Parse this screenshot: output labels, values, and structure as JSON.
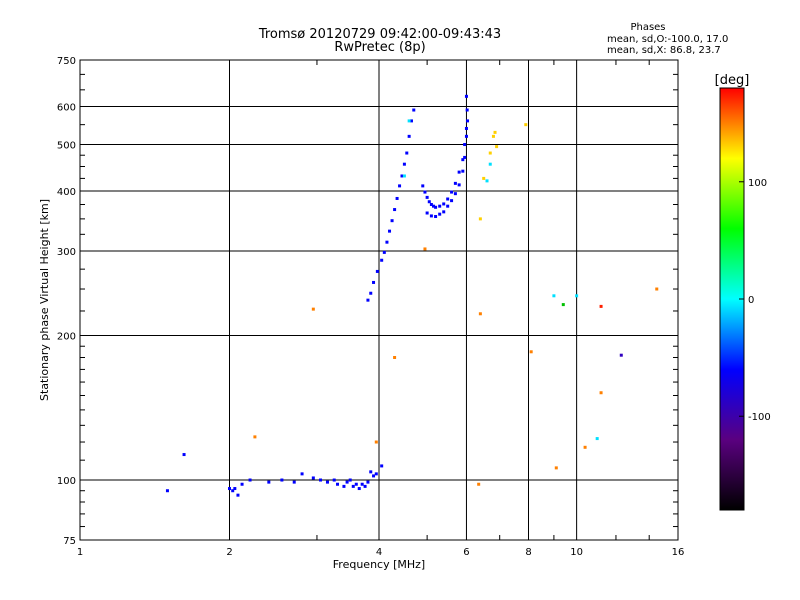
{
  "header": {
    "title_line1": "Tromsø 20120729 09:42:00-09:43:43",
    "title_line2": "RwPretec (8p)"
  },
  "phases_box": {
    "title": "Phases",
    "line1": "mean, sd,O:-100.0, 17.0",
    "line2": "mean, sd,X:  86.8, 23.7"
  },
  "colorbar": {
    "label": "[deg]",
    "ticks": [
      "100",
      "0",
      "-100"
    ],
    "range": [
      -180,
      180
    ],
    "colors": [
      "#000000",
      "#5a0080",
      "#0000ff",
      "#00ffff",
      "#00ff00",
      "#ffff00",
      "#ff0000"
    ]
  },
  "chart_data": {
    "type": "scatter",
    "title": "Tromsø 20120729 09:42:00-09:43:43",
    "subtitle": "RwPretec (8p)",
    "xlabel": "Frequency [MHz]",
    "ylabel": "Stationary phase Virtual Height [km]",
    "xscale": "log",
    "yscale": "log",
    "xlim": [
      1,
      16
    ],
    "ylim": [
      75,
      750
    ],
    "xticks": [
      "1",
      "2",
      "4",
      "6",
      "8",
      "10",
      "16"
    ],
    "yticks": [
      "75",
      "100",
      "200",
      "300",
      "400",
      "500",
      "600",
      "750"
    ],
    "grid": true,
    "series": [
      {
        "color": "#0000ff",
        "points": [
          [
            1.5,
            95
          ],
          [
            1.62,
            113
          ],
          [
            2.0,
            96
          ],
          [
            2.03,
            95
          ],
          [
            2.05,
            96
          ],
          [
            2.08,
            93
          ],
          [
            2.12,
            98
          ],
          [
            2.2,
            100
          ],
          [
            2.4,
            99
          ],
          [
            2.55,
            100
          ],
          [
            2.7,
            99
          ],
          [
            2.8,
            103
          ],
          [
            2.95,
            101
          ],
          [
            3.05,
            100
          ],
          [
            3.15,
            99
          ],
          [
            3.25,
            100
          ],
          [
            3.3,
            98
          ],
          [
            3.4,
            97
          ],
          [
            3.45,
            99
          ],
          [
            3.5,
            100
          ],
          [
            3.55,
            97
          ],
          [
            3.6,
            98
          ],
          [
            3.65,
            96
          ],
          [
            3.7,
            98
          ],
          [
            3.75,
            97
          ],
          [
            3.8,
            99
          ],
          [
            3.85,
            104
          ],
          [
            3.9,
            102
          ],
          [
            3.95,
            103
          ],
          [
            4.05,
            107
          ],
          [
            3.8,
            237
          ],
          [
            3.85,
            245
          ],
          [
            3.9,
            258
          ],
          [
            3.97,
            272
          ],
          [
            4.05,
            287
          ],
          [
            4.1,
            298
          ],
          [
            4.15,
            313
          ],
          [
            4.2,
            330
          ],
          [
            4.25,
            347
          ],
          [
            4.3,
            366
          ],
          [
            4.35,
            386
          ],
          [
            4.4,
            410
          ],
          [
            4.45,
            430
          ],
          [
            4.5,
            455
          ],
          [
            4.55,
            480
          ],
          [
            4.6,
            520
          ],
          [
            4.65,
            560
          ],
          [
            4.7,
            590
          ],
          [
            4.9,
            410
          ],
          [
            4.95,
            398
          ],
          [
            5.0,
            388
          ],
          [
            5.05,
            380
          ],
          [
            5.1,
            375
          ],
          [
            5.15,
            372
          ],
          [
            5.2,
            370
          ],
          [
            5.3,
            372
          ],
          [
            5.4,
            376
          ],
          [
            5.5,
            385
          ],
          [
            5.6,
            398
          ],
          [
            5.7,
            415
          ],
          [
            5.8,
            438
          ],
          [
            5.9,
            465
          ],
          [
            5.95,
            500
          ],
          [
            6.0,
            540
          ],
          [
            6.02,
            590
          ],
          [
            6.0,
            630
          ],
          [
            5.0,
            360
          ],
          [
            5.1,
            355
          ],
          [
            5.2,
            354
          ],
          [
            5.3,
            358
          ],
          [
            5.4,
            362
          ],
          [
            5.5,
            372
          ],
          [
            5.6,
            382
          ],
          [
            5.7,
            395
          ],
          [
            5.8,
            412
          ],
          [
            5.9,
            440
          ],
          [
            5.95,
            470
          ],
          [
            6.0,
            520
          ],
          [
            6.03,
            560
          ]
        ]
      },
      {
        "color": "#00e0ff",
        "points": [
          [
            4.5,
            430
          ],
          [
            4.6,
            560
          ],
          [
            6.6,
            420
          ],
          [
            6.7,
            455
          ],
          [
            9.0,
            242
          ],
          [
            10.0,
            242
          ],
          [
            11.0,
            122
          ]
        ]
      },
      {
        "color": "#00c000",
        "points": [
          [
            9.4,
            232
          ]
        ]
      },
      {
        "color": "#ffd000",
        "points": [
          [
            6.5,
            425
          ],
          [
            6.7,
            480
          ],
          [
            6.8,
            520
          ],
          [
            6.85,
            530
          ],
          [
            6.9,
            495
          ],
          [
            7.9,
            550
          ],
          [
            6.4,
            350
          ]
        ]
      },
      {
        "color": "#ff8000",
        "points": [
          [
            2.25,
            123
          ],
          [
            2.95,
            227
          ],
          [
            3.95,
            120
          ],
          [
            4.3,
            180
          ],
          [
            4.95,
            303
          ],
          [
            6.35,
            98
          ],
          [
            6.4,
            222
          ],
          [
            8.1,
            185
          ],
          [
            9.1,
            106
          ],
          [
            10.4,
            117
          ],
          [
            11.2,
            152
          ],
          [
            14.5,
            250
          ]
        ]
      },
      {
        "color": "#ff2000",
        "points": [
          [
            11.2,
            230
          ]
        ]
      },
      {
        "color": "#3000c0",
        "points": [
          [
            12.3,
            182
          ]
        ]
      }
    ]
  }
}
